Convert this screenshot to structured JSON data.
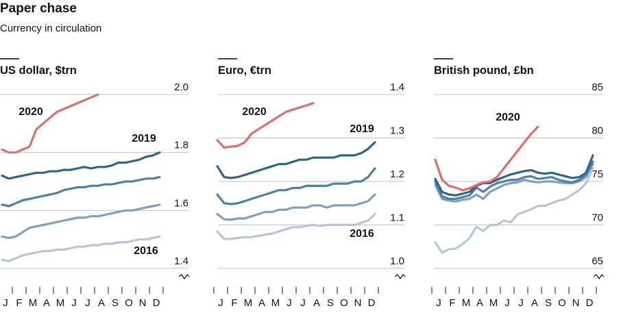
{
  "title": "Paper chase",
  "subtitle": "Currency in circulation",
  "chart_data": [
    {
      "type": "line",
      "title": "US dollar, $trn",
      "categories": [
        "J",
        null,
        "F",
        null,
        "M",
        null,
        "A",
        null,
        "M",
        null,
        "J",
        null,
        "J",
        null,
        "A",
        null,
        "S",
        null,
        "O",
        null,
        "N",
        null,
        "D",
        null
      ],
      "ylim": [
        1.4,
        2.0
      ],
      "yticks": [
        {
          "value": 2.0,
          "label": "2.0"
        },
        1.8,
        1.6,
        1.4
      ],
      "grid": true,
      "series": [
        {
          "color": "#b4c6da",
          "name": "2016",
          "values": [
            1.43,
            1.425,
            1.435,
            1.445,
            1.45,
            1.455,
            1.46,
            1.46,
            1.465,
            1.465,
            1.47,
            1.475,
            1.475,
            1.48,
            1.48,
            1.485,
            1.485,
            1.49,
            1.49,
            1.495,
            1.5,
            1.5,
            1.505,
            1.51
          ]
        },
        {
          "color": "#7e9fc0",
          "values": [
            1.51,
            1.505,
            1.51,
            1.525,
            1.54,
            1.545,
            1.55,
            1.555,
            1.56,
            1.565,
            1.57,
            1.575,
            1.575,
            1.58,
            1.58,
            1.585,
            1.59,
            1.595,
            1.6,
            1.6,
            1.605,
            1.61,
            1.615,
            1.62
          ]
        },
        {
          "color": "#4f7ea8",
          "values": [
            1.62,
            1.615,
            1.625,
            1.635,
            1.64,
            1.645,
            1.65,
            1.655,
            1.66,
            1.67,
            1.675,
            1.68,
            1.68,
            1.685,
            1.685,
            1.69,
            1.69,
            1.695,
            1.7,
            1.7,
            1.705,
            1.71,
            1.71,
            1.715
          ]
        },
        {
          "color": "#2e6490",
          "name": "2019",
          "values": [
            1.72,
            1.71,
            1.715,
            1.72,
            1.725,
            1.73,
            1.73,
            1.735,
            1.735,
            1.74,
            1.74,
            1.745,
            1.75,
            1.745,
            1.75,
            1.75,
            1.755,
            1.765,
            1.765,
            1.77,
            1.775,
            1.785,
            1.79,
            1.8
          ]
        },
        {
          "color": "#e06d6a",
          "name": "2020",
          "values": [
            1.81,
            1.8,
            1.8,
            1.81,
            1.82,
            1.88,
            1.9,
            1.92,
            1.94,
            1.95,
            1.96,
            1.97,
            1.98,
            1.99,
            2.0,
            null,
            null,
            null,
            null,
            null,
            null,
            null,
            null,
            null
          ]
        }
      ]
    },
    {
      "type": "line",
      "title": "Euro, €trn",
      "categories": [
        "J",
        null,
        "F",
        null,
        "M",
        null,
        "A",
        null,
        "M",
        null,
        "J",
        null,
        "J",
        null,
        "A",
        null,
        "S",
        null,
        "O",
        null,
        "N",
        null,
        "D",
        null
      ],
      "ylim": [
        1.0,
        1.4
      ],
      "yticks": [
        1.4,
        1.3,
        1.2,
        1.1,
        {
          "value": 1.0,
          "label": "1.0"
        }
      ],
      "grid": true,
      "series": [
        {
          "color": "#b4c6da",
          "name": "2016",
          "values": [
            1.085,
            1.068,
            1.068,
            1.07,
            1.072,
            1.072,
            1.075,
            1.078,
            1.08,
            1.085,
            1.09,
            1.095,
            1.095,
            1.098,
            1.1,
            1.098,
            1.1,
            1.1,
            1.1,
            1.1,
            1.1,
            1.105,
            1.11,
            1.125
          ]
        },
        {
          "color": "#7e9fc0",
          "values": [
            1.125,
            1.113,
            1.112,
            1.115,
            1.115,
            1.12,
            1.125,
            1.13,
            1.13,
            1.135,
            1.135,
            1.14,
            1.14,
            1.14,
            1.145,
            1.145,
            1.14,
            1.145,
            1.145,
            1.145,
            1.145,
            1.15,
            1.155,
            1.17
          ]
        },
        {
          "color": "#4f7ea8",
          "values": [
            1.17,
            1.15,
            1.148,
            1.15,
            1.155,
            1.16,
            1.165,
            1.17,
            1.175,
            1.18,
            1.18,
            1.185,
            1.185,
            1.19,
            1.19,
            1.19,
            1.19,
            1.195,
            1.195,
            1.195,
            1.2,
            1.2,
            1.21,
            1.23
          ]
        },
        {
          "color": "#2e6490",
          "name": "2019",
          "values": [
            1.235,
            1.21,
            1.208,
            1.21,
            1.215,
            1.22,
            1.225,
            1.23,
            1.235,
            1.24,
            1.24,
            1.245,
            1.25,
            1.25,
            1.255,
            1.255,
            1.255,
            1.255,
            1.26,
            1.26,
            1.26,
            1.265,
            1.275,
            1.29
          ]
        },
        {
          "color": "#e06d6a",
          "name": "2020",
          "values": [
            1.295,
            1.278,
            1.28,
            1.282,
            1.29,
            1.31,
            1.32,
            1.33,
            1.34,
            1.35,
            1.36,
            1.365,
            1.37,
            1.375,
            1.38,
            null,
            null,
            null,
            null,
            null,
            null,
            null,
            null,
            null
          ]
        }
      ]
    },
    {
      "type": "line",
      "title": "British pound, £bn",
      "categories": [
        "J",
        null,
        "F",
        null,
        "M",
        null,
        "A",
        null,
        "M",
        null,
        "J",
        null,
        "J",
        null,
        "A",
        null,
        "S",
        null,
        "O",
        null,
        "N",
        null,
        "D",
        null
      ],
      "ylim": [
        65,
        85
      ],
      "yticks": [
        85,
        80,
        75,
        70,
        65
      ],
      "grid": true,
      "series": [
        {
          "color": "#b4c6da",
          "values": [
            68.0,
            66.8,
            67.2,
            67.3,
            67.8,
            68.5,
            69.8,
            69.3,
            70.0,
            70.0,
            70.5,
            70.3,
            71.2,
            71.5,
            71.8,
            72.2,
            72.2,
            72.5,
            72.8,
            73.0,
            73.5,
            74.0,
            74.8,
            76.5
          ]
        },
        {
          "color": "#7e9fc0",
          "values": [
            74.6,
            73.0,
            72.8,
            72.7,
            72.9,
            73.0,
            73.5,
            73.0,
            73.8,
            74.2,
            74.6,
            74.8,
            74.9,
            75.2,
            75.0,
            74.9,
            75.0,
            75.0,
            74.9,
            74.8,
            74.8,
            75.0,
            75.5,
            77.0
          ]
        },
        {
          "color": "#4f7ea8",
          "values": [
            75.0,
            73.3,
            73.0,
            73.0,
            73.2,
            73.4,
            74.3,
            73.8,
            74.4,
            74.8,
            75.0,
            75.2,
            75.2,
            75.5,
            75.6,
            75.3,
            75.4,
            75.5,
            75.2,
            75.0,
            74.9,
            75.2,
            75.8,
            77.3
          ]
        },
        {
          "color": "#2e6490",
          "values": [
            75.3,
            73.8,
            73.5,
            73.4,
            73.6,
            73.8,
            74.5,
            74.8,
            74.8,
            75.2,
            75.5,
            75.8,
            76.0,
            76.2,
            76.3,
            76.0,
            75.9,
            76.0,
            75.8,
            75.6,
            75.4,
            75.5,
            76.0,
            78.0
          ]
        },
        {
          "color": "#e06d6a",
          "name": "2020",
          "values": [
            77.5,
            75.2,
            74.5,
            74.3,
            74.0,
            74.2,
            74.6,
            74.9,
            75.0,
            75.5,
            76.5,
            77.5,
            78.5,
            79.5,
            80.5,
            81.3,
            null,
            null,
            null,
            null,
            null,
            null,
            null,
            null
          ]
        }
      ]
    }
  ]
}
